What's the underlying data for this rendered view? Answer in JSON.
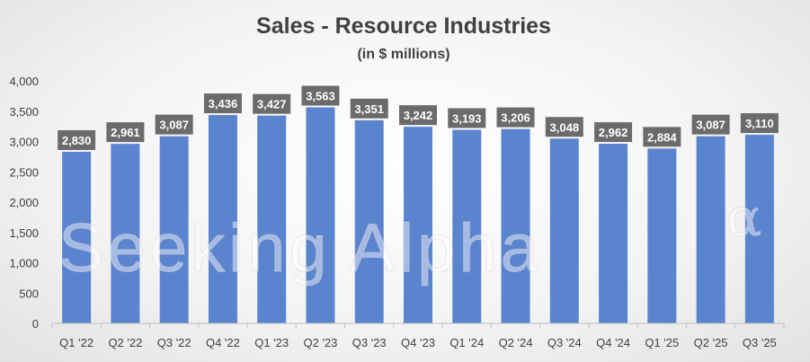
{
  "chart_data": {
    "type": "bar",
    "title": "Sales - Resource Industries",
    "subtitle": "(in $ millions)",
    "xlabel": "",
    "ylabel": "",
    "categories": [
      "Q1 '22",
      "Q2 '22",
      "Q3 '22",
      "Q4 '22",
      "Q1 '23",
      "Q2 '23",
      "Q3 '23",
      "Q4 '23",
      "Q1 '24",
      "Q2 '24",
      "Q3 '24",
      "Q4 '24",
      "Q1 '25",
      "Q2 '25",
      "Q3 '25"
    ],
    "values": [
      2830,
      2961,
      3087,
      3436,
      3427,
      3563,
      3351,
      3242,
      3193,
      3206,
      3048,
      2962,
      2884,
      3087,
      3110
    ],
    "data_labels": [
      "2,830",
      "2,961",
      "3,087",
      "3,436",
      "3,427",
      "3,563",
      "3,351",
      "3,242",
      "3,193",
      "3,206",
      "3,048",
      "2,962",
      "2,884",
      "3,087",
      "3,110"
    ],
    "ylim": [
      0,
      4000
    ],
    "yticks": [
      0,
      500,
      1000,
      1500,
      2000,
      2500,
      3000,
      3500,
      4000
    ],
    "ytick_labels": [
      "0",
      "500",
      "1,000",
      "1,500",
      "2,000",
      "2,500",
      "3,000",
      "3,500",
      "4,000"
    ],
    "grid": false,
    "legend": "none",
    "bar_color": "#5b84cf",
    "label_bg_color": "#6b6b6b",
    "label_text_color": "#ffffff",
    "watermark": "Seeking Alpha"
  }
}
